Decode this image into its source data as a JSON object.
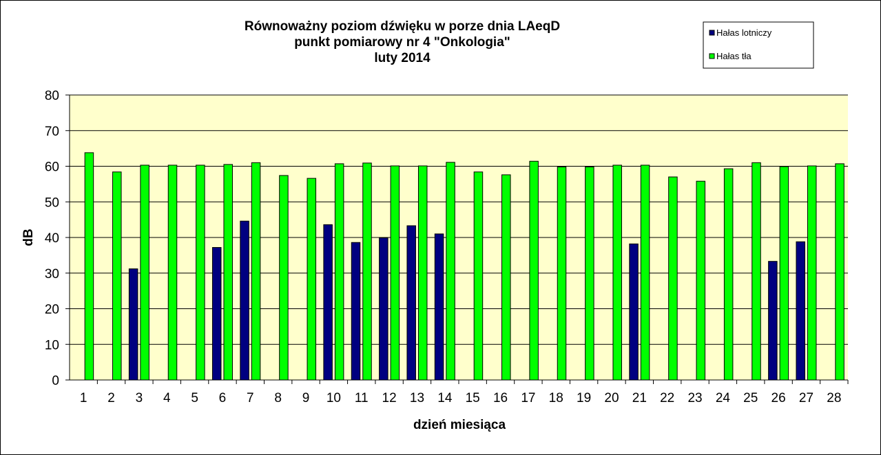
{
  "chart_data": {
    "type": "bar",
    "title_lines": [
      "Równoważny poziom dźwięku w porze dnia LAeqD",
      "punkt pomiarowy nr 4 \"Onkologia\"",
      "luty 2014"
    ],
    "xlabel": "dzień miesiąca",
    "ylabel": "dB",
    "ylim": [
      0,
      80
    ],
    "yticks": [
      0,
      10,
      20,
      30,
      40,
      50,
      60,
      70,
      80
    ],
    "grid": true,
    "legend_position": "top-right",
    "plot_background": "#FFFFCC",
    "categories": [
      "1",
      "2",
      "3",
      "4",
      "5",
      "6",
      "7",
      "8",
      "9",
      "10",
      "11",
      "12",
      "13",
      "14",
      "15",
      "16",
      "17",
      "18",
      "19",
      "20",
      "21",
      "22",
      "23",
      "24",
      "25",
      "26",
      "27",
      "28"
    ],
    "series": [
      {
        "name": "Hałas lotniczy",
        "color": "#000080",
        "values": [
          null,
          null,
          31.2,
          null,
          null,
          37.2,
          44.6,
          null,
          null,
          43.6,
          38.6,
          39.9,
          43.3,
          41.0,
          null,
          null,
          null,
          null,
          null,
          null,
          38.2,
          null,
          null,
          null,
          null,
          33.3,
          38.8,
          null
        ]
      },
      {
        "name": "Hałas tła",
        "color": "#00FF00",
        "values": [
          63.8,
          58.4,
          60.3,
          60.3,
          60.3,
          60.5,
          61.0,
          57.4,
          56.6,
          60.7,
          60.9,
          60.1,
          60.1,
          61.1,
          58.4,
          57.6,
          61.4,
          59.8,
          59.8,
          60.3,
          60.3,
          57.0,
          55.8,
          59.3,
          61.0,
          59.9,
          60.1,
          60.7
        ]
      }
    ]
  }
}
